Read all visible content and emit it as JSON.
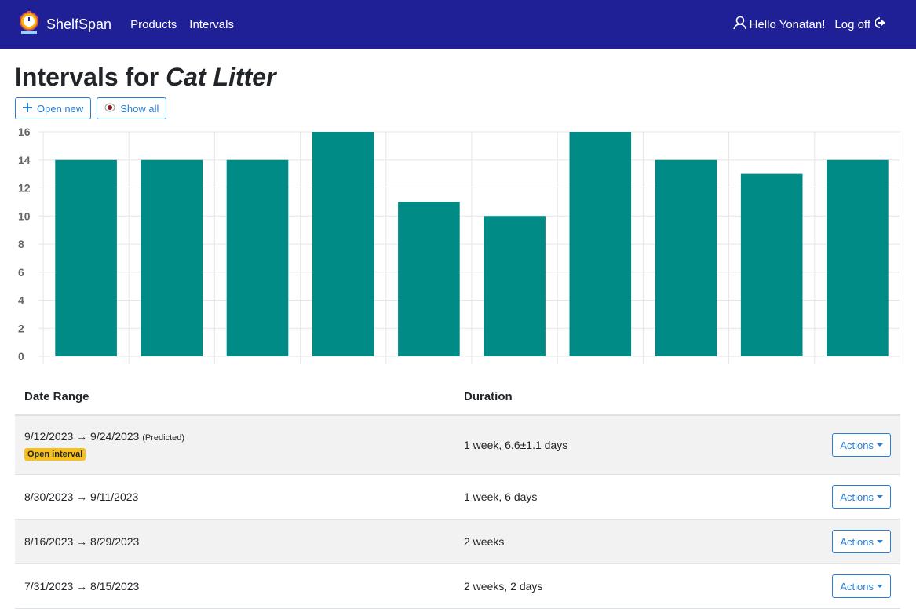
{
  "app": {
    "name": "ShelfSpan"
  },
  "nav": {
    "items": [
      "Products",
      "Intervals"
    ],
    "greeting": "Hello Yonatan!",
    "logoff": "Log off"
  },
  "page": {
    "title_prefix": "Intervals for",
    "title_product": "Cat Litter",
    "buttons": {
      "open_new": "Open new",
      "show_all": "Show all"
    }
  },
  "colors": {
    "navbar": "#1f1f96",
    "bar": "#008b86",
    "accent": "#2a7fd4",
    "badge": "#f7c01a"
  },
  "chart_data": {
    "type": "bar",
    "values": [
      14,
      14,
      14,
      16,
      11,
      10,
      16,
      14,
      13,
      14
    ],
    "ylim": [
      0,
      16
    ],
    "yticks": [
      0,
      2,
      4,
      6,
      8,
      10,
      12,
      14,
      16
    ],
    "grid": true
  },
  "table": {
    "headers": {
      "date_range": "Date Range",
      "duration": "Duration"
    },
    "rows": [
      {
        "range": "9/12/2023 → 9/24/2023",
        "note": "(Predicted)",
        "badge": "Open interval",
        "duration": "1 week, 6.6±1.1 days",
        "action": "Actions"
      },
      {
        "range": "8/30/2023 → 9/11/2023",
        "duration": "1 week, 6 days",
        "action": "Actions"
      },
      {
        "range": "8/16/2023 → 8/29/2023",
        "duration": "2 weeks",
        "action": "Actions"
      },
      {
        "range": "7/31/2023 → 8/15/2023",
        "duration": "2 weeks, 2 days",
        "action": "Actions"
      }
    ]
  }
}
